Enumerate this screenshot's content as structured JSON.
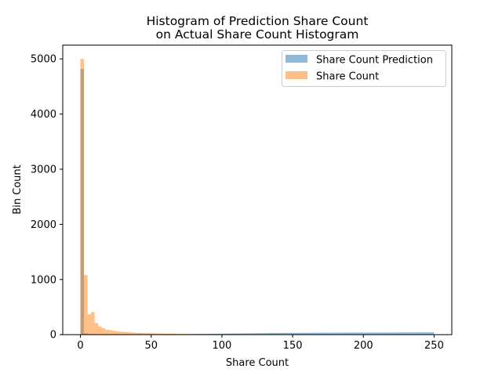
{
  "chart_data": {
    "type": "bar",
    "title_lines": [
      "Histogram of Prediction Share Count",
      "on Actual Share Count Histogram"
    ],
    "xlabel": "Share Count",
    "ylabel": "Bin Count",
    "xlim": [
      -12.5,
      262.5
    ],
    "ylim": [
      0,
      5250
    ],
    "x_ticks": [
      0,
      50,
      100,
      150,
      200,
      250
    ],
    "y_ticks": [
      0,
      1000,
      2000,
      3000,
      4000,
      5000
    ],
    "grid": false,
    "legend_position": "top-right",
    "bin_width": 2.5,
    "series": [
      {
        "name": "Share Count Prediction",
        "color": "#1f77b4",
        "bin_start": 0,
        "values": [
          4820,
          25,
          10,
          8,
          6,
          5,
          5,
          5,
          5,
          5,
          5,
          5,
          5,
          5,
          5,
          6,
          6,
          6,
          6,
          6,
          7,
          7,
          7,
          7,
          8,
          8,
          9,
          10,
          10,
          11,
          12,
          12,
          13,
          13,
          14,
          15,
          16,
          17,
          18,
          18,
          20,
          20,
          21,
          22,
          23,
          24,
          24,
          25,
          26,
          27,
          28,
          28,
          29,
          30,
          30,
          31,
          31,
          32,
          32,
          33,
          32,
          33,
          33,
          34,
          34,
          35,
          35,
          35,
          36,
          36,
          36,
          37,
          37,
          37,
          37,
          38,
          38,
          38,
          38,
          39,
          38,
          39,
          39,
          39,
          39,
          40,
          40,
          40,
          40,
          40,
          41,
          41,
          41,
          41,
          42,
          42,
          42,
          42,
          42,
          43
        ]
      },
      {
        "name": "Share Count",
        "color": "#ff7f0e",
        "bin_start": 0,
        "values": [
          5000,
          1080,
          370,
          410,
          210,
          150,
          120,
          90,
          80,
          70,
          60,
          55,
          50,
          45,
          40,
          36,
          33,
          30,
          28,
          26,
          24,
          22,
          20,
          19,
          18,
          17,
          16,
          15,
          14,
          13,
          12,
          11,
          11,
          10,
          10,
          9,
          9,
          8,
          8,
          8,
          7,
          7,
          7,
          6,
          6,
          6,
          6,
          5,
          5,
          5,
          5,
          5,
          4,
          4,
          4,
          4,
          4,
          4,
          3,
          3,
          3,
          3,
          3,
          3,
          3,
          3,
          3,
          2,
          2,
          2,
          2,
          2,
          2,
          2,
          2,
          2,
          2,
          2,
          2,
          2,
          2,
          2,
          2,
          2,
          2,
          2,
          2,
          2,
          2,
          2,
          2,
          2,
          2,
          2,
          2,
          2,
          2,
          2,
          2,
          2
        ]
      }
    ]
  }
}
